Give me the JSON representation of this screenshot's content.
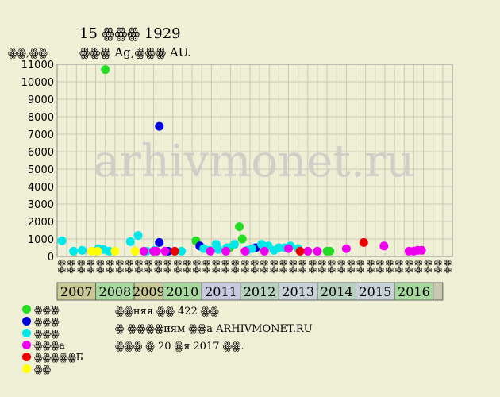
{
  "chart_data": {
    "type": "scatter",
    "title": "15 ꙮꙮꙮ 1929",
    "subtitle": "ꙮꙮꙮ Ag,ꙮꙮꙮ AU.",
    "ylabel": "ꙮꙮ,ꙮꙮ",
    "watermark": "arhivmonet.ru",
    "ylim": [
      0,
      11000
    ],
    "yticks": [
      0,
      1000,
      2000,
      3000,
      4000,
      5000,
      6000,
      7000,
      8000,
      9000,
      10000,
      11000
    ],
    "grid": true,
    "x_slots": [
      "ꙮꙮ",
      "ꙮꙮ",
      "ꙮꙮ",
      "ꙮꙮ",
      "ꙮꙮ",
      "ꙮꙮ",
      "ꙮꙮ",
      "ꙮꙮ",
      "ꙮꙮ",
      "ꙮꙮ",
      "ꙮꙮ",
      "ꙮꙮ",
      "ꙮꙮ",
      "ꙮꙮ",
      "ꙮꙮ",
      "ꙮꙮ",
      "ꙮꙮ",
      "ꙮꙮ",
      "ꙮꙮ",
      "ꙮꙮ",
      "ꙮꙮ",
      "ꙮꙮ",
      "ꙮꙮ",
      "ꙮꙮ",
      "ꙮꙮ",
      "ꙮꙮ",
      "ꙮꙮ",
      "ꙮꙮ",
      "ꙮꙮ",
      "ꙮꙮ",
      "ꙮꙮ",
      "ꙮꙮ",
      "ꙮꙮ",
      "ꙮꙮ",
      "ꙮꙮ",
      "ꙮꙮ",
      "ꙮꙮ",
      "ꙮꙮ",
      "ꙮꙮ",
      "ꙮꙮ",
      "ꙮꙮ"
    ],
    "years": [
      {
        "label": "2007",
        "span": 4,
        "color": "#c8c896"
      },
      {
        "label": "2008",
        "span": 4,
        "color": "#a8d8a0"
      },
      {
        "label": "2009",
        "span": 3,
        "color": "#c8c896"
      },
      {
        "label": "2010",
        "span": 4,
        "color": "#a8d8a0"
      },
      {
        "label": "2011",
        "span": 4,
        "color": "#c8c8e0"
      },
      {
        "label": "2012",
        "span": 4,
        "color": "#b8d0c0"
      },
      {
        "label": "2013",
        "span": 4,
        "color": "#c8d0d8"
      },
      {
        "label": "2014",
        "span": 4,
        "color": "#b8d0c0"
      },
      {
        "label": "2015",
        "span": 4,
        "color": "#c8d0d8"
      },
      {
        "label": "2016",
        "span": 4,
        "color": "#a8d8a0"
      },
      {
        "label": "",
        "span": 1,
        "color": "#c8c8b0"
      }
    ],
    "series": [
      {
        "name": "ꙮꙮꙮ",
        "color": "#22dd22",
        "points": [
          [
            5.0,
            10700
          ],
          [
            14.4,
            900
          ],
          [
            17.9,
            500
          ],
          [
            18.9,
            1700
          ],
          [
            19.2,
            1000
          ],
          [
            28.0,
            300
          ],
          [
            28.3,
            300
          ]
        ]
      },
      {
        "name": "ꙮꙮꙮ",
        "color": "#0000dd",
        "points": [
          [
            10.6,
            7450
          ],
          [
            10.6,
            800
          ],
          [
            11.5,
            300
          ],
          [
            14.8,
            600
          ],
          [
            20.6,
            500
          ]
        ]
      },
      {
        "name": "ꙮꙮꙮ",
        "color": "#00e8e8",
        "points": [
          [
            0.5,
            900
          ],
          [
            1.7,
            300
          ],
          [
            2.6,
            350
          ],
          [
            4.3,
            450
          ],
          [
            4.8,
            400
          ],
          [
            5.4,
            300
          ],
          [
            7.6,
            850
          ],
          [
            8.4,
            1200
          ],
          [
            9.3,
            300
          ],
          [
            10.1,
            350
          ],
          [
            12.9,
            300
          ],
          [
            15.2,
            450
          ],
          [
            15.8,
            350
          ],
          [
            16.5,
            700
          ],
          [
            16.7,
            400
          ],
          [
            17.6,
            500
          ],
          [
            18.4,
            700
          ],
          [
            19.7,
            350
          ],
          [
            20.2,
            450
          ],
          [
            21.2,
            700
          ],
          [
            21.9,
            600
          ],
          [
            22.5,
            350
          ],
          [
            23.0,
            500
          ],
          [
            23.6,
            500
          ],
          [
            24.2,
            600
          ],
          [
            25.0,
            450
          ]
        ]
      },
      {
        "name": "ꙮꙮꙮa",
        "color": "#ee00ee",
        "points": [
          [
            9.0,
            300
          ],
          [
            10.0,
            300
          ],
          [
            10.3,
            300
          ],
          [
            11.2,
            300
          ],
          [
            15.9,
            300
          ],
          [
            17.5,
            300
          ],
          [
            19.5,
            300
          ],
          [
            21.5,
            300
          ],
          [
            24.0,
            450
          ],
          [
            26.0,
            300
          ],
          [
            27.0,
            300
          ],
          [
            30.0,
            450
          ],
          [
            33.9,
            600
          ],
          [
            36.5,
            300
          ],
          [
            37.0,
            300
          ],
          [
            37.4,
            350
          ],
          [
            37.8,
            350
          ]
        ]
      },
      {
        "name": "ꙮꙮꙮꙮꙮБ",
        "color": "#ee0000",
        "points": [
          [
            12.2,
            300
          ],
          [
            25.2,
            300
          ],
          [
            31.8,
            800
          ]
        ]
      },
      {
        "name": "ꙮꙮ",
        "color": "#ffff00",
        "points": [
          [
            3.6,
            300
          ],
          [
            4.2,
            300
          ],
          [
            6.0,
            300
          ],
          [
            8.1,
            300
          ]
        ]
      }
    ]
  },
  "notes": {
    "line1": "ꙮꙮняя ꙮꙮ 422 ꙮꙮ",
    "line2": "ꙮ ꙮꙮꙮꙮиям ꙮꙮa ARHIVMONET.RU",
    "line3": "ꙮꙮꙮ ꙮ 20 ꙮя 2017 ꙮꙮ."
  }
}
